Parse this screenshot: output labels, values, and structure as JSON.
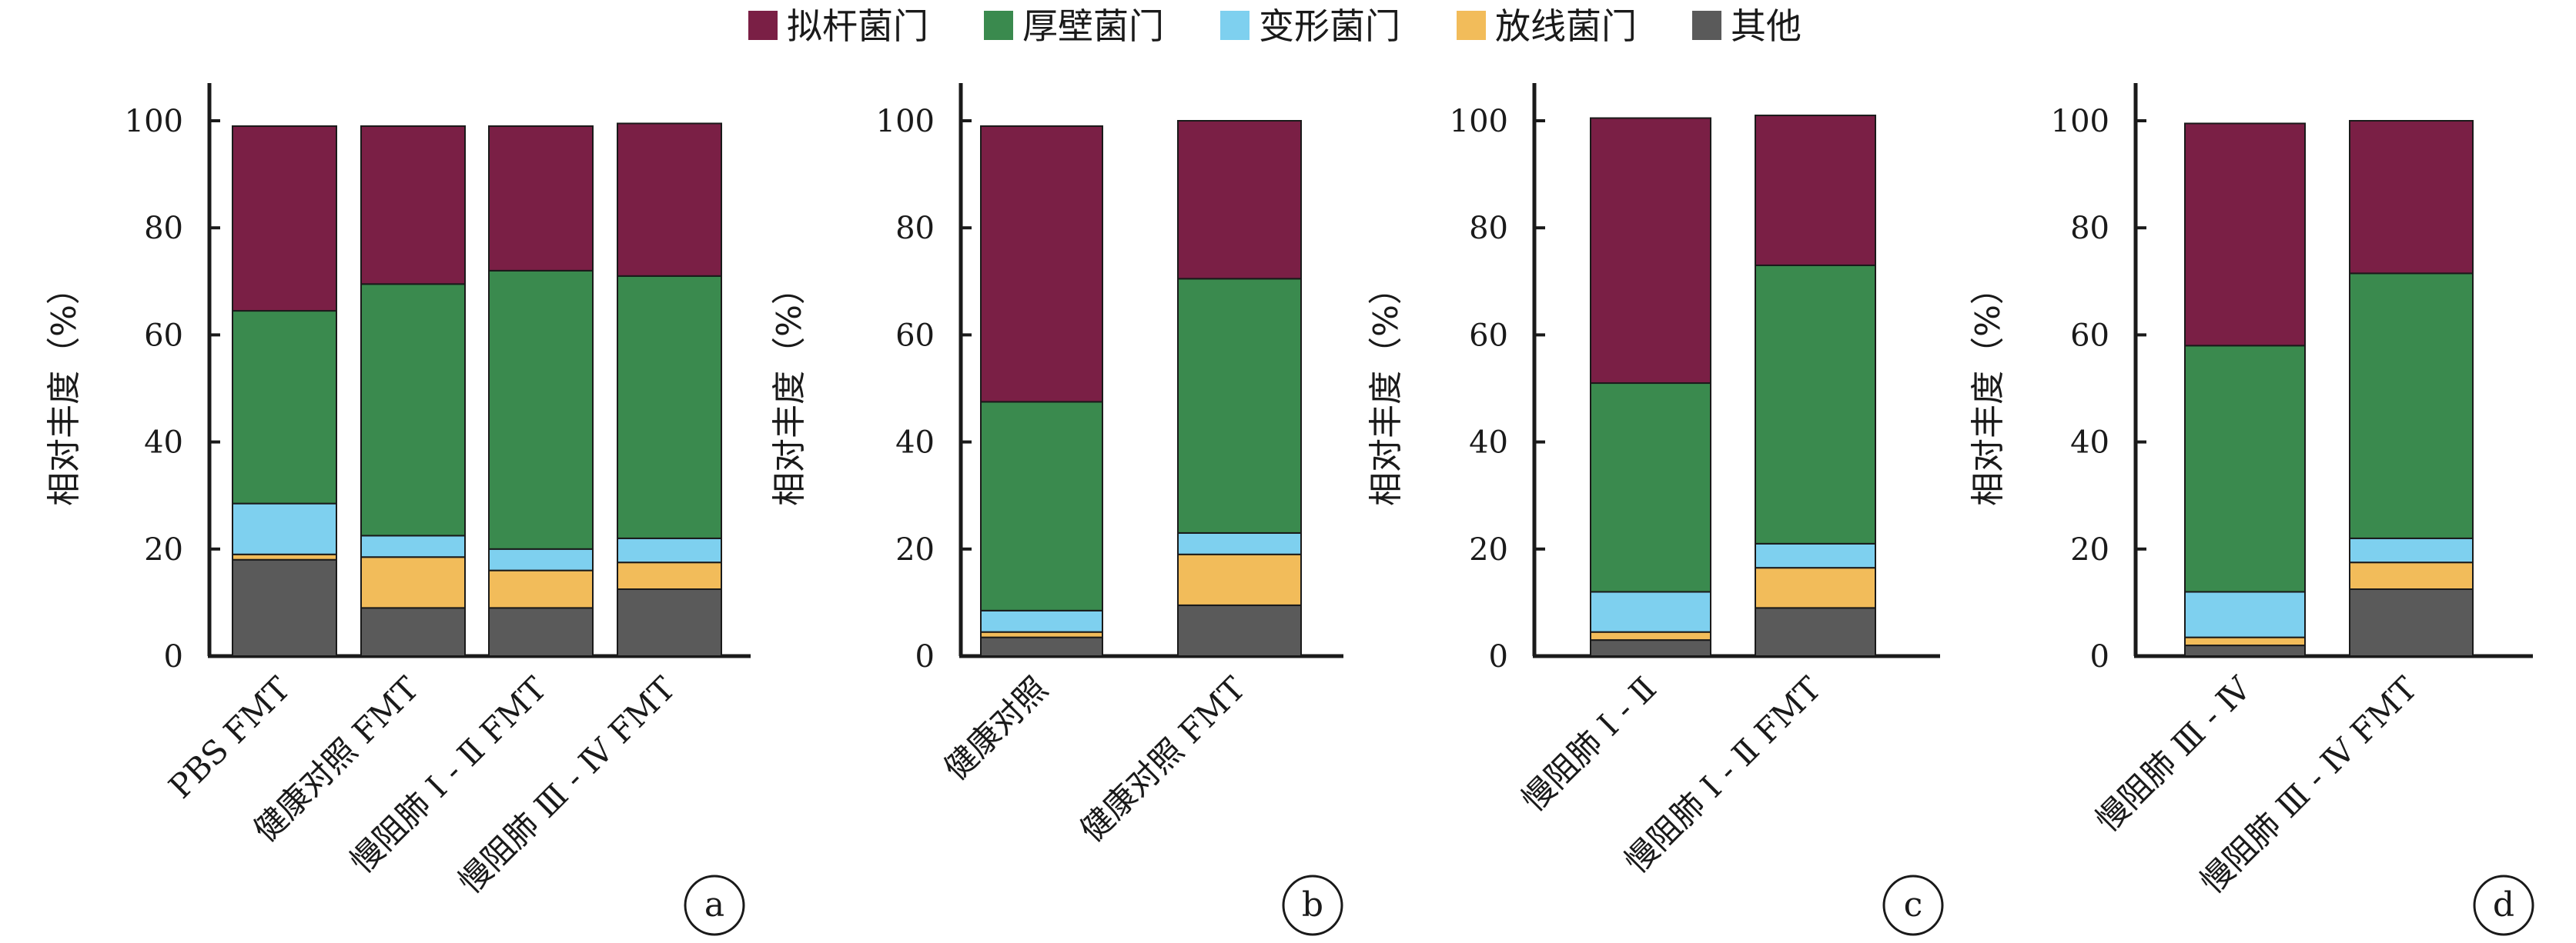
{
  "legend": [
    {
      "label": "拟杆菌门",
      "color": "#7a1f45"
    },
    {
      "label": "厚壁菌门",
      "color": "#3a8a4e"
    },
    {
      "label": "变形菌门",
      "color": "#7ed0ef"
    },
    {
      "label": "放线菌门",
      "color": "#f2bc5a"
    },
    {
      "label": "其他",
      "color": "#5a5a5a"
    }
  ],
  "chart_data": [
    {
      "type": "bar",
      "stacked": true,
      "panel_label": "a",
      "ylabel": "相对丰度（%）",
      "ylim": [
        0,
        100
      ],
      "yticks": [
        0,
        20,
        40,
        60,
        80,
        100
      ],
      "categories": [
        "PBS FMT",
        "健康对照 FMT",
        "慢阻肺 Ⅰ - Ⅱ FMT",
        "慢阻肺 Ⅲ - Ⅳ FMT"
      ],
      "series": [
        {
          "name": "其他",
          "values": [
            18,
            9,
            9,
            12.5
          ]
        },
        {
          "name": "放线菌门",
          "values": [
            1,
            9.5,
            7,
            5
          ]
        },
        {
          "name": "变形菌门",
          "values": [
            9.5,
            4,
            4,
            4.5
          ]
        },
        {
          "name": "厚壁菌门",
          "values": [
            36,
            47,
            52,
            49
          ]
        },
        {
          "name": "拟杆菌门",
          "values": [
            34.5,
            29.5,
            27,
            28.5
          ]
        }
      ]
    },
    {
      "type": "bar",
      "stacked": true,
      "panel_label": "b",
      "ylabel": "相对丰度（%）",
      "ylim": [
        0,
        100
      ],
      "yticks": [
        0,
        20,
        40,
        60,
        80,
        100
      ],
      "categories": [
        "健康对照",
        "健康对照 FMT"
      ],
      "series": [
        {
          "name": "其他",
          "values": [
            3.5,
            9.5
          ]
        },
        {
          "name": "放线菌门",
          "values": [
            1,
            9.5
          ]
        },
        {
          "name": "变形菌门",
          "values": [
            4,
            4
          ]
        },
        {
          "name": "厚壁菌门",
          "values": [
            39,
            47.5
          ]
        },
        {
          "name": "拟杆菌门",
          "values": [
            51.5,
            29.5
          ]
        }
      ]
    },
    {
      "type": "bar",
      "stacked": true,
      "panel_label": "c",
      "ylabel": "相对丰度（%）",
      "ylim": [
        0,
        100
      ],
      "yticks": [
        0,
        20,
        40,
        60,
        80,
        100
      ],
      "categories": [
        "慢阻肺 Ⅰ - Ⅱ",
        "慢阻肺 Ⅰ - Ⅱ FMT"
      ],
      "series": [
        {
          "name": "其他",
          "values": [
            3,
            9
          ]
        },
        {
          "name": "放线菌门",
          "values": [
            1.5,
            7.5
          ]
        },
        {
          "name": "变形菌门",
          "values": [
            7.5,
            4.5
          ]
        },
        {
          "name": "厚壁菌门",
          "values": [
            39,
            52
          ]
        },
        {
          "name": "拟杆菌门",
          "values": [
            49.5,
            28
          ]
        }
      ]
    },
    {
      "type": "bar",
      "stacked": true,
      "panel_label": "d",
      "ylabel": "相对丰度（%）",
      "ylim": [
        0,
        100
      ],
      "yticks": [
        0,
        20,
        40,
        60,
        80,
        100
      ],
      "categories": [
        "慢阻肺 Ⅲ - Ⅳ",
        "慢阻肺 Ⅲ - Ⅳ FMT"
      ],
      "series": [
        {
          "name": "其他",
          "values": [
            2,
            12.5
          ]
        },
        {
          "name": "放线菌门",
          "values": [
            1.5,
            5
          ]
        },
        {
          "name": "变形菌门",
          "values": [
            8.5,
            4.5
          ]
        },
        {
          "name": "厚壁菌门",
          "values": [
            46,
            49.5
          ]
        },
        {
          "name": "拟杆菌门",
          "values": [
            41.5,
            28.5
          ]
        }
      ]
    }
  ]
}
